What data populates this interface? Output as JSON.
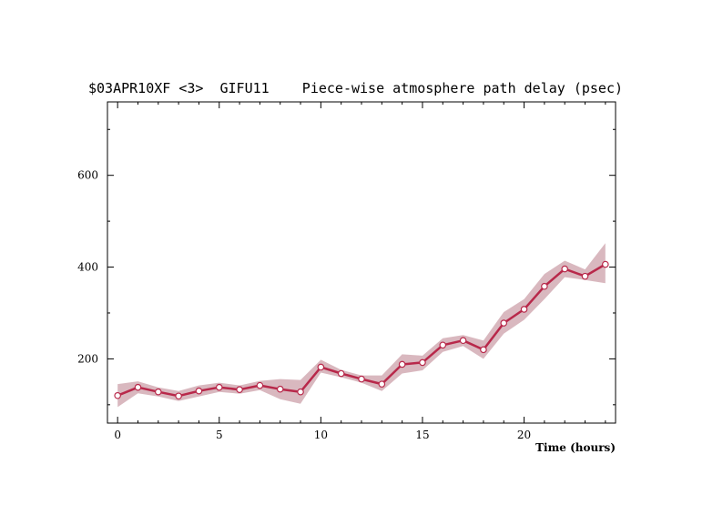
{
  "chart_data": {
    "type": "line",
    "title": "$03APR10XF <3>  GIFU11    Piece-wise atmosphere path delay (psec)",
    "xlabel": "Time (hours)",
    "ylabel": "",
    "xlim": [
      -0.5,
      24.5
    ],
    "ylim": [
      60,
      760
    ],
    "x_ticks": [
      0,
      5,
      10,
      15,
      20
    ],
    "y_ticks": [
      200,
      400,
      600
    ],
    "grid": false,
    "colors": {
      "line": "#b8284a",
      "band": "#d9b8bf",
      "marker_fill": "#ffffff"
    },
    "series": [
      {
        "x": [
          0,
          1,
          2,
          3,
          4,
          5,
          6,
          7,
          8,
          9,
          10,
          11,
          12,
          13,
          14,
          15,
          16,
          17,
          18,
          19,
          20,
          21,
          22,
          23,
          24
        ],
        "values": [
          120,
          138,
          128,
          119,
          130,
          138,
          133,
          142,
          134,
          128,
          182,
          168,
          156,
          145,
          188,
          192,
          230,
          240,
          220,
          278,
          308,
          358,
          396,
          380,
          406
        ],
        "lower": [
          95,
          125,
          118,
          108,
          118,
          128,
          124,
          132,
          112,
          102,
          170,
          160,
          148,
          130,
          168,
          175,
          215,
          228,
          200,
          255,
          285,
          330,
          378,
          372,
          365
        ],
        "upper": [
          145,
          151,
          138,
          130,
          142,
          148,
          142,
          152,
          156,
          154,
          198,
          176,
          164,
          164,
          210,
          207,
          245,
          252,
          240,
          302,
          330,
          385,
          414,
          395,
          452
        ]
      }
    ]
  }
}
